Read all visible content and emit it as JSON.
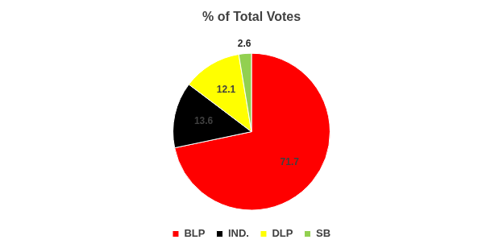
{
  "chart_data": {
    "type": "pie",
    "title": "% of Total Votes",
    "categories": [
      "BLP",
      "IND.",
      "DLP",
      "SB"
    ],
    "values": [
      71.7,
      13.6,
      12.1,
      2.6
    ],
    "colors": [
      "#ff0000",
      "#000000",
      "#ffff00",
      "#92d050"
    ],
    "data_labels": true,
    "legend": "bottom"
  }
}
